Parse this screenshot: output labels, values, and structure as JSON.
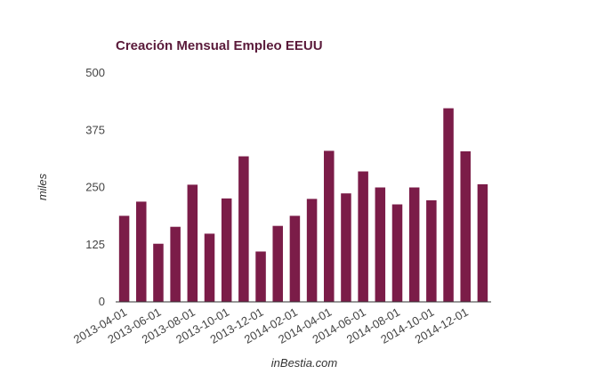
{
  "chart_data": {
    "type": "bar",
    "title": "Creación Mensual Empleo EEUU",
    "ylabel": "miles",
    "xlabel": "inBestia.com",
    "ylim": [
      0,
      500
    ],
    "yticks": [
      0,
      125,
      250,
      375,
      500
    ],
    "bar_color": "#7b1c48",
    "categories": [
      "2013-04-01",
      "2013-05-01",
      "2013-06-01",
      "2013-07-01",
      "2013-08-01",
      "2013-09-01",
      "2013-10-01",
      "2013-11-01",
      "2013-12-01",
      "2014-01-01",
      "2014-02-01",
      "2014-03-01",
      "2014-04-01",
      "2014-05-01",
      "2014-06-01",
      "2014-07-01",
      "2014-08-01",
      "2014-09-01",
      "2014-10-01",
      "2014-11-01",
      "2014-12-01",
      "2015-01-01"
    ],
    "visible_tick_labels": [
      "2013-04-01",
      "2013-06-01",
      "2013-08-01",
      "2013-10-01",
      "2013-12-01",
      "2014-02-01",
      "2014-04-01",
      "2014-06-01",
      "2014-08-01",
      "2014-10-01",
      "2014-12-01"
    ],
    "values": [
      188,
      219,
      127,
      164,
      256,
      149,
      226,
      318,
      110,
      166,
      188,
      225,
      330,
      237,
      285,
      250,
      213,
      250,
      222,
      423,
      329,
      257
    ]
  }
}
